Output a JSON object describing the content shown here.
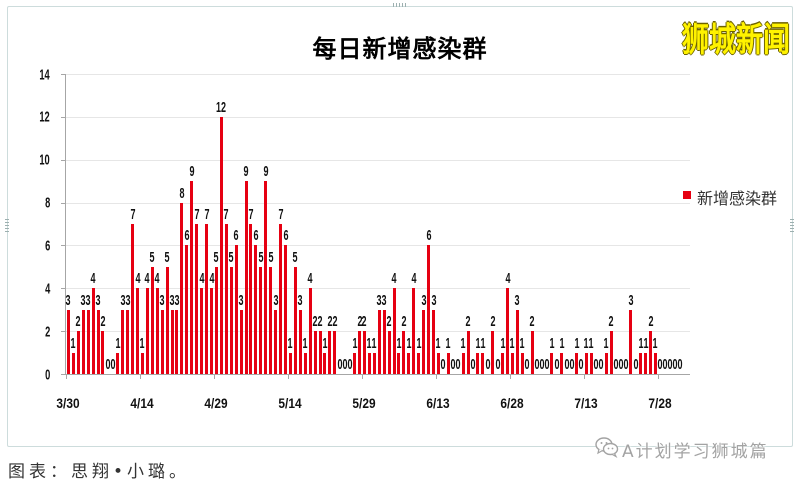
{
  "header": {
    "brand_watermark": "狮城新闻"
  },
  "chart": {
    "title": "每日新增感染群",
    "legend_label": "新增感染群"
  },
  "footer": {
    "caption": "图表：思翔•小璐。",
    "watermark": "A计划学习狮城篇",
    "watermark_icon": "wechat-icon"
  },
  "colors": {
    "bar": "#e60012",
    "brand": "#fff200",
    "gridline": "#e6e6e6",
    "axis": "#a6a6a6"
  },
  "chart_data": {
    "type": "bar",
    "title": "每日新增感染群",
    "xlabel": "",
    "ylabel": "",
    "ylim": [
      0,
      14
    ],
    "yticks": [
      0,
      2,
      4,
      6,
      8,
      10,
      12,
      14
    ],
    "xtick_labels": [
      "3/30",
      "4/14",
      "4/29",
      "5/14",
      "5/29",
      "6/13",
      "6/28",
      "7/13",
      "7/28"
    ],
    "grid": true,
    "data_labels": true,
    "legend_position": "right",
    "categories": [
      "3/30",
      "3/31",
      "4/1",
      "4/2",
      "4/3",
      "4/4",
      "4/5",
      "4/6",
      "4/7",
      "4/8",
      "4/9",
      "4/10",
      "4/11",
      "4/12",
      "4/13",
      "4/14",
      "4/15",
      "4/16",
      "4/17",
      "4/18",
      "4/19",
      "4/20",
      "4/21",
      "4/22",
      "4/23",
      "4/24",
      "4/25",
      "4/26",
      "4/27",
      "4/28",
      "4/29",
      "4/30",
      "5/1",
      "5/2",
      "5/3",
      "5/4",
      "5/5",
      "5/6",
      "5/7",
      "5/8",
      "5/9",
      "5/10",
      "5/11",
      "5/12",
      "5/13",
      "5/14",
      "5/15",
      "5/16",
      "5/17",
      "5/18",
      "5/19",
      "5/20",
      "5/21",
      "5/22",
      "5/23",
      "5/24",
      "5/25",
      "5/26",
      "5/27",
      "5/28",
      "5/29",
      "5/30",
      "5/31",
      "6/1",
      "6/2",
      "6/3",
      "6/4",
      "6/5",
      "6/6",
      "6/7",
      "6/8",
      "6/9",
      "6/10",
      "6/11",
      "6/12",
      "6/13",
      "6/14",
      "6/15",
      "6/16",
      "6/17",
      "6/18",
      "6/19",
      "6/20",
      "6/21",
      "6/22",
      "6/23",
      "6/24",
      "6/25",
      "6/26",
      "6/27",
      "6/28",
      "6/29",
      "6/30",
      "7/1",
      "7/2",
      "7/3",
      "7/4",
      "7/5",
      "7/6",
      "7/7",
      "7/8",
      "7/9",
      "7/10",
      "7/11",
      "7/12",
      "7/13",
      "7/14",
      "7/15",
      "7/16",
      "7/17",
      "7/18",
      "7/19",
      "7/20",
      "7/21",
      "7/22",
      "7/23",
      "7/24",
      "7/25",
      "7/26",
      "7/27",
      "7/28",
      "7/29",
      "7/30",
      "7/31",
      "8/1"
    ],
    "series": [
      {
        "name": "新增感染群",
        "color": "#e60012",
        "values": [
          3,
          1,
          2,
          3,
          3,
          4,
          3,
          2,
          0,
          0,
          1,
          3,
          3,
          7,
          4,
          1,
          4,
          5,
          4,
          3,
          5,
          3,
          3,
          8,
          6,
          9,
          7,
          4,
          7,
          4,
          5,
          12,
          7,
          5,
          6,
          3,
          9,
          7,
          6,
          5,
          9,
          5,
          3,
          7,
          6,
          1,
          5,
          3,
          1,
          4,
          2,
          2,
          1,
          2,
          2,
          0,
          0,
          0,
          1,
          2,
          2,
          1,
          1,
          3,
          3,
          2,
          4,
          1,
          2,
          1,
          4,
          1,
          3,
          6,
          3,
          1,
          0,
          1,
          0,
          0,
          1,
          2,
          0,
          1,
          1,
          0,
          2,
          0,
          1,
          4,
          1,
          3,
          1,
          0,
          2,
          0,
          0,
          0,
          1,
          0,
          1,
          0,
          0,
          1,
          0,
          1,
          1,
          0,
          0,
          1,
          2,
          0,
          0,
          0,
          3,
          0,
          1,
          1,
          2,
          1,
          0,
          0,
          0,
          0,
          0
        ]
      }
    ]
  }
}
